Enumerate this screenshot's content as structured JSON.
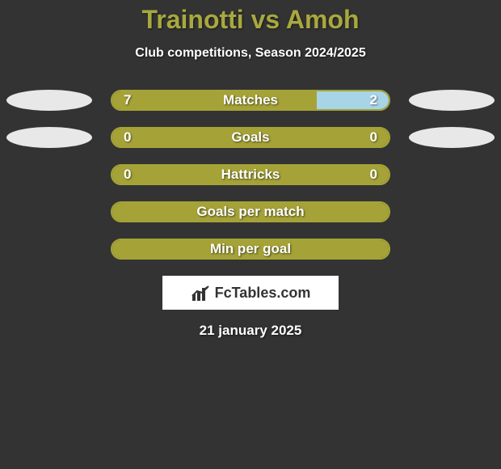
{
  "colors": {
    "background": "#333333",
    "title": "#a8a83e",
    "text_light": "#ffffff",
    "bar_fill": "#a5a337",
    "bar_alt": "#a8d4e8",
    "bar_border": "#a5a337",
    "oval": "#e8e8e8",
    "watermark_bg": "#ffffff",
    "watermark_text": "#333333"
  },
  "title": {
    "player1": "Trainotti",
    "vs": " vs ",
    "player2": "Amoh"
  },
  "subtitle": "Club competitions, Season 2024/2025",
  "stats": [
    {
      "label": "Matches",
      "left_value": "7",
      "right_value": "2",
      "left_pct": 74,
      "right_pct": 26,
      "left_color": "#a5a337",
      "right_color": "#a8d4e8",
      "show_ovals": true
    },
    {
      "label": "Goals",
      "left_value": "0",
      "right_value": "0",
      "left_pct": 100,
      "right_pct": 0,
      "left_color": "#a5a337",
      "right_color": "#a8d4e8",
      "show_ovals": true
    },
    {
      "label": "Hattricks",
      "left_value": "0",
      "right_value": "0",
      "left_pct": 100,
      "right_pct": 0,
      "left_color": "#a5a337",
      "right_color": "#a8d4e8",
      "show_ovals": false
    },
    {
      "label": "Goals per match",
      "left_value": "",
      "right_value": "",
      "left_pct": 100,
      "right_pct": 0,
      "left_color": "#a5a337",
      "right_color": "#a8d4e8",
      "show_ovals": false
    },
    {
      "label": "Min per goal",
      "left_value": "",
      "right_value": "",
      "left_pct": 100,
      "right_pct": 0,
      "left_color": "#a5a337",
      "right_color": "#a8d4e8",
      "show_ovals": false
    }
  ],
  "watermark": "FcTables.com",
  "date": "21 january 2025"
}
